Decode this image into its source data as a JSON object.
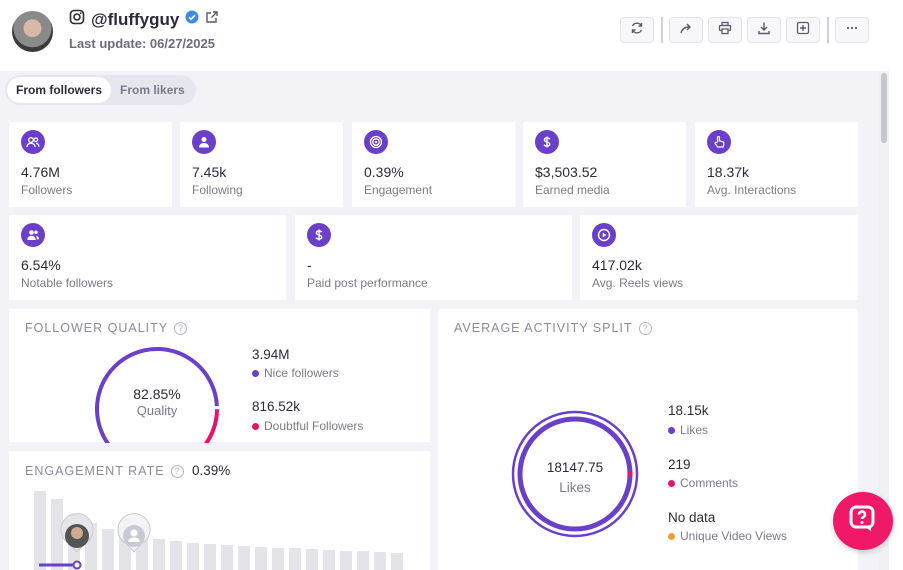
{
  "profile": {
    "handle": "@fluffyguy",
    "last_update": "Last update: 06/27/2025",
    "verified_icon": "verified-badge-icon"
  },
  "toolbar": {
    "buttons": [
      "refresh-icon",
      "share-icon",
      "print-icon",
      "download-icon",
      "add-to-list-icon",
      "more-icon"
    ]
  },
  "tabs": [
    {
      "label": "From followers",
      "active": true
    },
    {
      "label": "From likers",
      "active": false
    }
  ],
  "stats": [
    {
      "value": "4.76M",
      "label": "Followers",
      "icon": "followers-icon"
    },
    {
      "value": "7.45k",
      "label": "Following",
      "icon": "following-icon"
    },
    {
      "value": "0.39%",
      "label": "Engagement",
      "icon": "target-icon"
    },
    {
      "value": "$3,503.52",
      "label": "Earned media",
      "icon": "dollar-icon"
    },
    {
      "value": "18.37k",
      "label": "Avg. Interactions",
      "icon": "pointer-icon"
    },
    {
      "value": "6.54%",
      "label": "Notable followers",
      "icon": "notable-followers-icon"
    },
    {
      "value": "-",
      "label": "Paid post performance",
      "icon": "dollar-icon"
    },
    {
      "value": "417.02k",
      "label": "Avg. Reels views",
      "icon": "play-icon"
    }
  ],
  "follower_quality": {
    "title": "FOLLOWER QUALITY",
    "center_value": "82.85%",
    "center_label": "Quality",
    "nice_fraction": 0.8285,
    "legend": [
      {
        "value": "3.94M",
        "label": "Nice followers",
        "color": "#6a3fc9"
      },
      {
        "value": "816.52k",
        "label": "Doubtful Followers",
        "color": "#e8126a"
      }
    ]
  },
  "activity_split": {
    "title": "AVERAGE ACTIVITY SPLIT",
    "center_value": "18147.75",
    "center_label": "Likes",
    "legend": [
      {
        "value": "18.15k",
        "label": "Likes",
        "color": "#6a3fc9"
      },
      {
        "value": "219",
        "label": "Comments",
        "color": "#e8126a"
      },
      {
        "value": "No data",
        "label": "Unique Video Views",
        "color": "#f29b38"
      }
    ]
  },
  "engagement_rate": {
    "title": "ENGAGEMENT RATE",
    "value": "0.39%"
  },
  "colors": {
    "accent": "#6a3fc9",
    "doubtful": "#e8126a",
    "help_button": "#f01967"
  }
}
